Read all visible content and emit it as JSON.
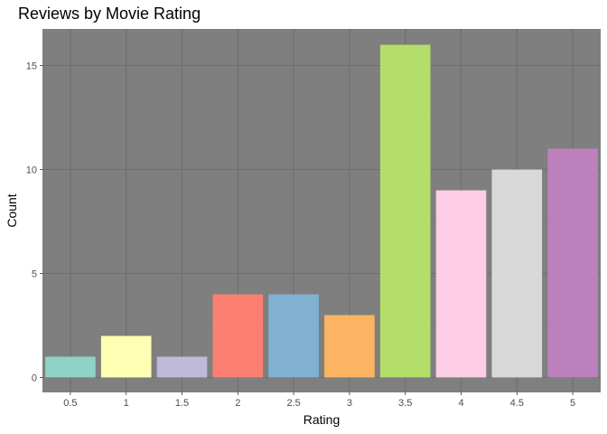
{
  "chart_data": {
    "type": "bar",
    "title": "Reviews by Movie Rating",
    "xlabel": "Rating",
    "ylabel": "Count",
    "categories": [
      "0.5",
      "1",
      "1.5",
      "2",
      "2.5",
      "3",
      "3.5",
      "4",
      "4.5",
      "5"
    ],
    "values": [
      1,
      2,
      1,
      4,
      4,
      3,
      16,
      9,
      10,
      11
    ],
    "ylim": [
      0,
      17.5
    ],
    "yticks": [
      "0",
      "5",
      "10",
      "15"
    ],
    "grid": true,
    "legend": "none",
    "colors": {
      "panel_background": "#7f7f7f",
      "grid_major": "#6e6e6e",
      "grid_minor": "#757575",
      "bars": [
        "#8dd3c7",
        "#ffffb3",
        "#bebada",
        "#fb8072",
        "#80b1d3",
        "#fdb462",
        "#b3de69",
        "#fccde5",
        "#d9d9d9",
        "#bc80bd"
      ]
    }
  }
}
